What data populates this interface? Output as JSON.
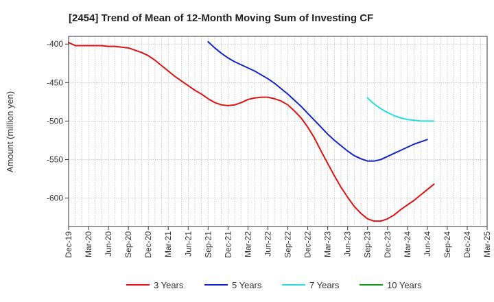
{
  "chart_data": {
    "type": "line",
    "title": "[2454]  Trend of Mean of 12-Month Moving Sum of Investing CF",
    "xlabel": "",
    "ylabel": "Amount (million yen)",
    "x_tick_labels": [
      "Dec-19",
      "Mar-20",
      "Jun-20",
      "Sep-20",
      "Dec-20",
      "Mar-21",
      "Jun-21",
      "Sep-21",
      "Dec-21",
      "Mar-22",
      "Jun-22",
      "Sep-22",
      "Dec-22",
      "Mar-23",
      "Jun-23",
      "Sep-23",
      "Dec-23",
      "Mar-24",
      "Jun-24",
      "Sep-24",
      "Dec-24",
      "Mar-25"
    ],
    "y_ticks": [
      -400,
      -450,
      -500,
      -550,
      -600
    ],
    "ylim": [
      -637,
      -390
    ],
    "grid": true,
    "legend_position": "bottom",
    "series": [
      {
        "name": "3 Years",
        "color": "#dd1111",
        "start_index": 0,
        "values": [
          -398,
          -402,
          -402,
          -402,
          -402,
          -402,
          -403,
          -403,
          -404,
          -405,
          -408,
          -411,
          -415,
          -421,
          -428,
          -435,
          -442,
          -448,
          -454,
          -460,
          -465,
          -471,
          -476,
          -479,
          -480,
          -479,
          -476,
          -472,
          -470,
          -469,
          -469,
          -471,
          -474,
          -479,
          -487,
          -496,
          -508,
          -522,
          -539,
          -555,
          -571,
          -586,
          -599,
          -611,
          -620,
          -627,
          -630,
          -630,
          -627,
          -622,
          -615,
          -609,
          -603,
          -596,
          -589,
          -582
        ]
      },
      {
        "name": "5 Years",
        "color": "#1122cc",
        "start_index": 21,
        "values": [
          -397,
          -405,
          -412,
          -418,
          -423,
          -427,
          -431,
          -435,
          -440,
          -445,
          -451,
          -458,
          -465,
          -473,
          -481,
          -490,
          -499,
          -508,
          -517,
          -525,
          -532,
          -539,
          -545,
          -549,
          -552,
          -552,
          -550,
          -546,
          -542,
          -538,
          -534,
          -530,
          -527,
          -524
        ]
      },
      {
        "name": "7 Years",
        "color": "#22dddd",
        "start_index": 45,
        "values": [
          -470,
          -478,
          -484,
          -489,
          -493,
          -496,
          -498,
          -499,
          -500,
          -500,
          -500
        ]
      },
      {
        "name": "10 Years",
        "color": "#119911",
        "start_index": 0,
        "values": []
      }
    ]
  }
}
